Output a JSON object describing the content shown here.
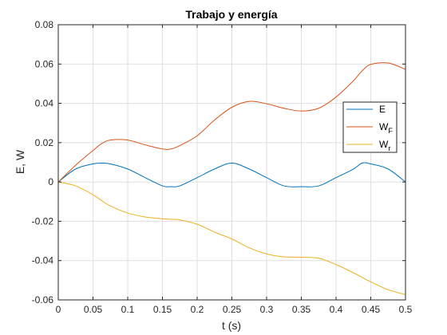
{
  "chart_data": {
    "type": "line",
    "title": "Trabajo y energía",
    "xlabel": "t (s)",
    "ylabel": "E, W",
    "xlim": [
      0,
      0.5
    ],
    "ylim": [
      -0.06,
      0.08
    ],
    "xticks": [
      0,
      0.05,
      0.1,
      0.15,
      0.2,
      0.25,
      0.3,
      0.35,
      0.4,
      0.45,
      0.5
    ],
    "xtick_labels": [
      "0",
      "0.05",
      "0.1",
      "0.15",
      "0.2",
      "0.25",
      "0.3",
      "0.35",
      "0.4",
      "0.45",
      "0.5"
    ],
    "yticks": [
      -0.06,
      -0.04,
      -0.02,
      0,
      0.02,
      0.04,
      0.06,
      0.08
    ],
    "ytick_labels": [
      "-0.06",
      "-0.04",
      "-0.02",
      "0",
      "0.02",
      "0.04",
      "0.06",
      "0.08"
    ],
    "grid": true,
    "legend_position": "right",
    "x": [
      0,
      0.025,
      0.05,
      0.0625,
      0.075,
      0.1,
      0.125,
      0.15,
      0.1625,
      0.175,
      0.2,
      0.225,
      0.25,
      0.275,
      0.3,
      0.325,
      0.35,
      0.375,
      0.4,
      0.425,
      0.4375,
      0.45,
      0.475,
      0.5
    ],
    "series": [
      {
        "name": "E",
        "legend_main": "E",
        "legend_sub": "",
        "color": "#0072BD",
        "values": [
          0,
          0.0066,
          0.0092,
          0.0096,
          0.0092,
          0.0066,
          0.0022,
          -0.002,
          -0.0024,
          -0.002,
          0.0022,
          0.0066,
          0.0096,
          0.0066,
          0.0022,
          -0.002,
          -0.0024,
          -0.002,
          0.0022,
          0.0066,
          0.0096,
          0.0092,
          0.0066,
          0
        ]
      },
      {
        "name": "WF",
        "legend_main": "W",
        "legend_sub": "F",
        "color": "#D95319",
        "values": [
          0,
          0.0085,
          0.016,
          0.0195,
          0.0213,
          0.0213,
          0.0189,
          0.0168,
          0.0168,
          0.0185,
          0.0235,
          0.0315,
          0.038,
          0.041,
          0.0398,
          0.0375,
          0.0361,
          0.0375,
          0.0432,
          0.0515,
          0.0565,
          0.0598,
          0.0605,
          0.0573
        ]
      },
      {
        "name": "Wr",
        "legend_main": "W",
        "legend_sub": "r",
        "color": "#EDB120",
        "values": [
          0,
          -0.002,
          -0.0065,
          -0.0095,
          -0.0122,
          -0.0158,
          -0.0178,
          -0.0187,
          -0.019,
          -0.0193,
          -0.0215,
          -0.0255,
          -0.029,
          -0.0335,
          -0.0366,
          -0.0381,
          -0.0383,
          -0.0388,
          -0.042,
          -0.0462,
          -0.0485,
          -0.0508,
          -0.0548,
          -0.0573
        ]
      }
    ]
  }
}
